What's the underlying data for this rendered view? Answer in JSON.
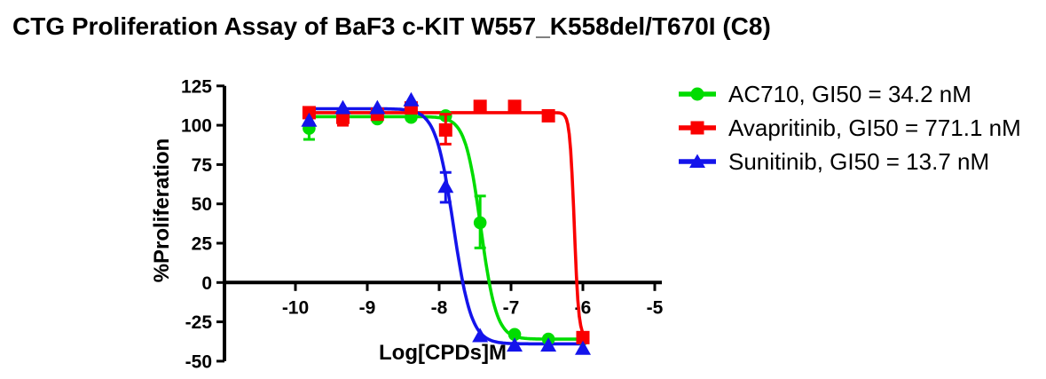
{
  "title": "CTG Proliferation Assay of BaF3 c-KIT W557_K558del/T670I (C8)",
  "chart_data": {
    "type": "line",
    "title": "CTG Proliferation Assay of BaF3 c-KIT W557_K558del/T670I (C8)",
    "xlabel": "Log[CPDs]M",
    "ylabel": "%Proliferation",
    "xlim": [
      -11,
      -4.9
    ],
    "ylim": [
      -50,
      125
    ],
    "x_ticks": [
      -10,
      -9,
      -8,
      -7,
      -6,
      -5
    ],
    "y_ticks": [
      125,
      100,
      75,
      50,
      25,
      0,
      -25,
      -50
    ],
    "grid": false,
    "legend_position": "right",
    "curve_model": "sigmoidal dose-response fit",
    "series": [
      {
        "name": "AC710, GI50 = 34.2 nM",
        "compound": "AC710",
        "gi50_nM": 34.2,
        "color": "#00DC00",
        "marker": "circle",
        "x": [
          -9.81,
          -9.34,
          -8.86,
          -8.39,
          -7.91,
          -7.43,
          -6.95,
          -6.48,
          -6.0
        ],
        "y": [
          98,
          104,
          104,
          105,
          106,
          38,
          -33,
          -36,
          -36
        ],
        "err_lo": [
          7,
          0,
          0,
          0,
          0,
          16,
          0,
          0,
          0
        ],
        "err_hi": [
          3,
          0,
          0,
          0,
          0,
          17,
          0,
          0,
          0
        ],
        "fit": {
          "top": 105.5,
          "bottom": -36,
          "log_ic50": -7.42,
          "hill": 4
        }
      },
      {
        "name": "Avapritinib, GI50 = 771.1 nM",
        "compound": "Avapritinib",
        "gi50_nM": 771.1,
        "color": "#FA0000",
        "marker": "square",
        "x": [
          -9.81,
          -9.34,
          -8.86,
          -8.39,
          -7.91,
          -7.43,
          -6.95,
          -6.48,
          -6.0
        ],
        "y": [
          108,
          105,
          107,
          111,
          97,
          112,
          112,
          106,
          -35
        ],
        "err_lo": [
          0,
          5,
          0,
          0,
          9,
          0,
          0,
          0,
          0
        ],
        "err_hi": [
          0,
          0,
          0,
          0,
          10,
          0,
          0,
          0,
          0
        ],
        "fit": {
          "top": 108,
          "bottom": -35,
          "log_ic50": -6.12,
          "hill": 14
        }
      },
      {
        "name": "Sunitinib, GI50 = 13.7 nM",
        "compound": "Sunitinib",
        "gi50_nM": 13.7,
        "color": "#1414EB",
        "marker": "triangle",
        "x": [
          -9.81,
          -9.34,
          -8.86,
          -8.39,
          -7.91,
          -7.43,
          -6.95,
          -6.48,
          -6.0
        ],
        "y": [
          103,
          111,
          111,
          116,
          61,
          -34,
          -40,
          -40,
          -42
        ],
        "err_lo": [
          0,
          0,
          0,
          0,
          10,
          0,
          0,
          0,
          0
        ],
        "err_hi": [
          0,
          0,
          0,
          0,
          9,
          0,
          0,
          0,
          0
        ],
        "fit": {
          "top": 110.5,
          "bottom": -39,
          "log_ic50": -7.8,
          "hill": 3.5
        }
      }
    ]
  }
}
